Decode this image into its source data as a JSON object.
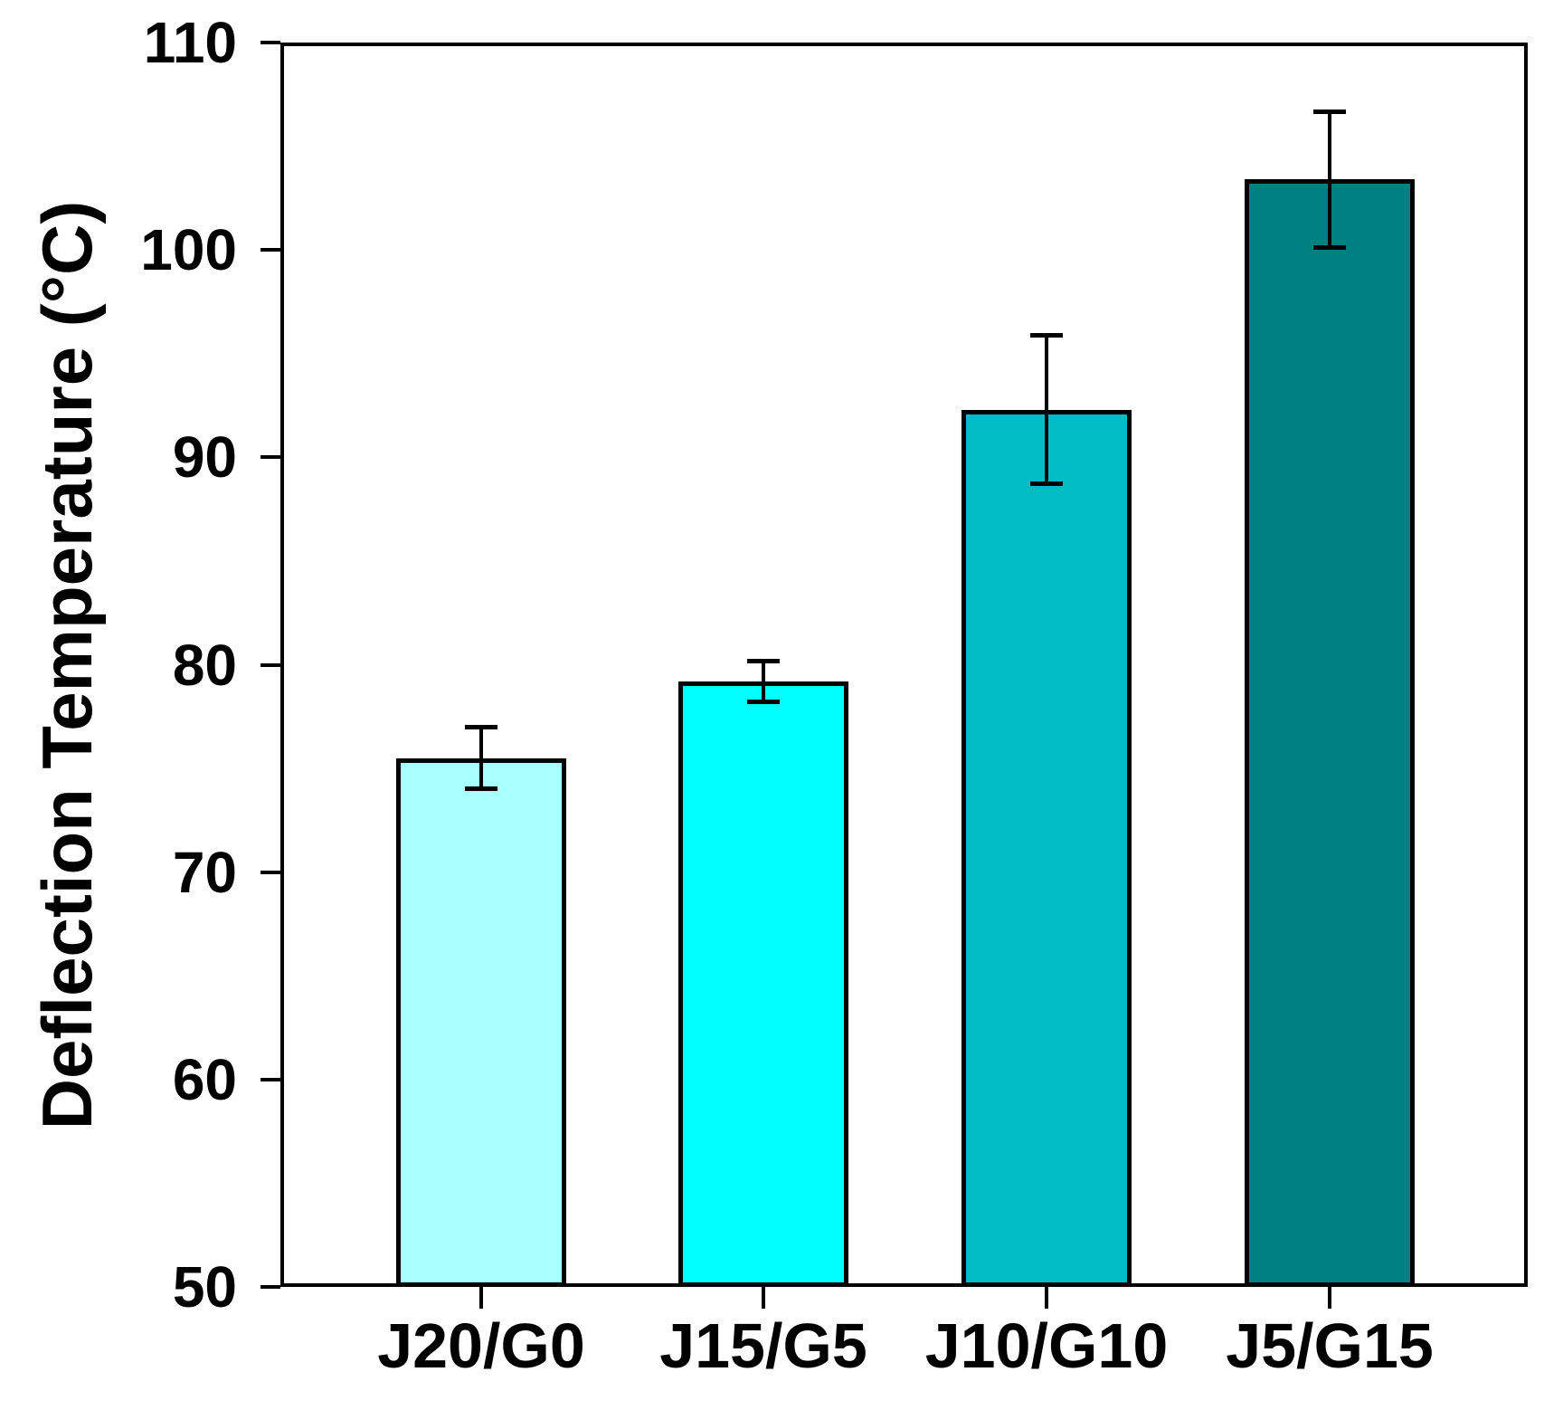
{
  "chart_data": {
    "type": "bar",
    "title": "",
    "xlabel": "",
    "ylabel": "Deflection Temperature (°C)",
    "categories": [
      "J20/G0",
      "J15/G5",
      "J10/G10",
      "J5/G15"
    ],
    "values": [
      75.5,
      79.2,
      92.3,
      103.4
    ],
    "errors": [
      1.5,
      1.0,
      3.6,
      3.3
    ],
    "bar_colors": [
      "#AAFFFF",
      "#00FFFF",
      "#00BCC4",
      "#008080"
    ],
    "ylim": [
      50,
      110
    ],
    "ytick_step": 10,
    "yticks": [
      50,
      60,
      70,
      80,
      90,
      100,
      110
    ],
    "grid": false,
    "legend_position": "none",
    "error_bar_style": "symmetric-caps",
    "frame": "full-box"
  },
  "colors": {
    "axis": "#000000",
    "background": "#FFFFFF",
    "text": "#000000"
  }
}
